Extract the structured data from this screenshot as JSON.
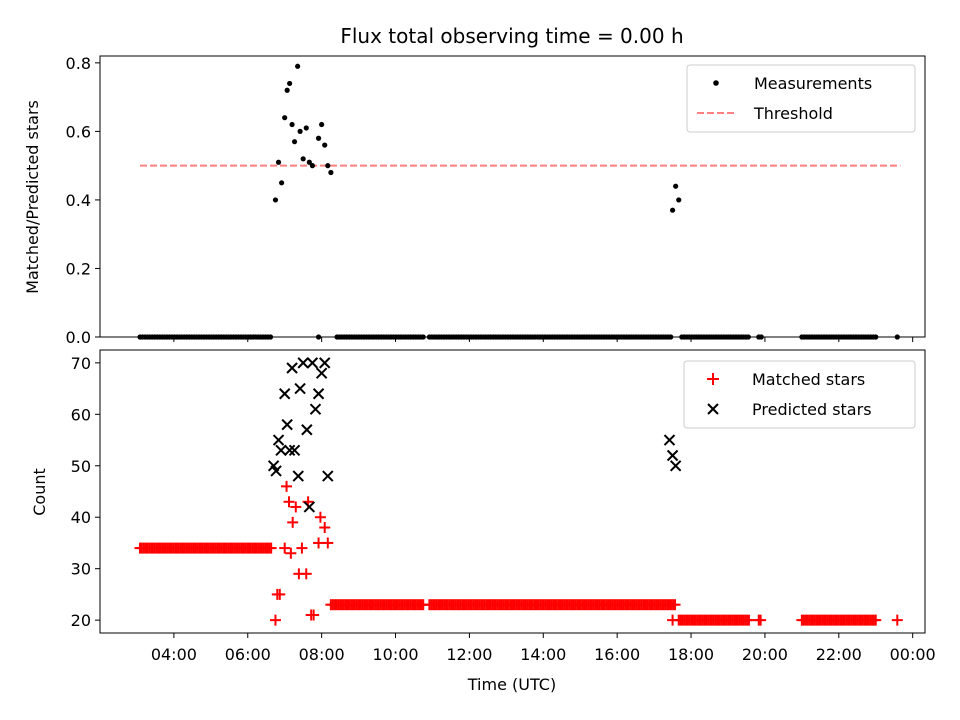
{
  "chart_data": [
    {
      "type": "scatter",
      "title": "Flux total observing time = 0.00 h",
      "xlabel": "",
      "ylabel": "Matched/Predicted stars",
      "ylim": [
        0,
        0.82
      ],
      "yticks": [
        0.0,
        0.2,
        0.4,
        0.6,
        0.8
      ],
      "ytick_labels": [
        "0.0",
        "0.2",
        "0.4",
        "0.6",
        "0.8"
      ],
      "xlim": [
        "02:00",
        "24:20"
      ],
      "legend_placement": "top-right",
      "colors": {
        "measurements": "#000000",
        "threshold": "#ff8080"
      },
      "series": [
        {
          "name": "Measurements",
          "marker": "dot",
          "points": [
            {
              "x": "06:45",
              "y": 0.4
            },
            {
              "x": "06:50",
              "y": 0.51
            },
            {
              "x": "06:55",
              "y": 0.45
            },
            {
              "x": "07:00",
              "y": 0.64
            },
            {
              "x": "07:04",
              "y": 0.72
            },
            {
              "x": "07:08",
              "y": 0.74
            },
            {
              "x": "07:12",
              "y": 0.62
            },
            {
              "x": "07:16",
              "y": 0.57
            },
            {
              "x": "07:21",
              "y": 0.79
            },
            {
              "x": "07:25",
              "y": 0.6
            },
            {
              "x": "07:30",
              "y": 0.52
            },
            {
              "x": "07:35",
              "y": 0.61
            },
            {
              "x": "07:40",
              "y": 0.51
            },
            {
              "x": "07:45",
              "y": 0.5
            },
            {
              "x": "07:55",
              "y": 0.58
            },
            {
              "x": "08:00",
              "y": 0.62
            },
            {
              "x": "08:05",
              "y": 0.56
            },
            {
              "x": "08:10",
              "y": 0.5
            },
            {
              "x": "08:15",
              "y": 0.48
            },
            {
              "x": "17:30",
              "y": 0.37
            },
            {
              "x": "17:35",
              "y": 0.44
            },
            {
              "x": "17:40",
              "y": 0.4
            }
          ],
          "zero_segments": [
            {
              "from": "03:05",
              "to": "06:40"
            },
            {
              "from": "07:55",
              "to": "07:58"
            },
            {
              "from": "08:25",
              "to": "10:45"
            },
            {
              "from": "10:55",
              "to": "17:30"
            },
            {
              "from": "17:45",
              "to": "19:35"
            },
            {
              "from": "19:50",
              "to": "19:55"
            },
            {
              "from": "21:00",
              "to": "23:00"
            },
            {
              "from": "23:35",
              "to": "23:38"
            }
          ]
        },
        {
          "name": "Threshold",
          "line": "dashed",
          "x": [
            "03:05",
            "23:40"
          ],
          "y": [
            0.5,
            0.5
          ]
        }
      ]
    },
    {
      "type": "scatter",
      "title": "",
      "xlabel": "Time (UTC)",
      "ylabel": "Count",
      "ylim": [
        17.5,
        72.5
      ],
      "yticks": [
        20,
        30,
        40,
        50,
        60,
        70
      ],
      "ytick_labels": [
        "20",
        "30",
        "40",
        "50",
        "60",
        "70"
      ],
      "xlim": [
        "02:00",
        "24:20"
      ],
      "xticks": [
        "04:00",
        "06:00",
        "08:00",
        "10:00",
        "12:00",
        "14:00",
        "16:00",
        "18:00",
        "20:00",
        "22:00",
        "24:00"
      ],
      "xtick_labels": [
        "04:00",
        "06:00",
        "08:00",
        "10:00",
        "12:00",
        "14:00",
        "16:00",
        "18:00",
        "20:00",
        "22:00",
        "00:00"
      ],
      "legend_placement": "top-right",
      "colors": {
        "matched": "#ff0000",
        "predicted": "#000000"
      },
      "series": [
        {
          "name": "Matched stars",
          "marker": "plus",
          "points": [
            {
              "x": "06:45",
              "y": 20
            },
            {
              "x": "06:48",
              "y": 25
            },
            {
              "x": "06:52",
              "y": 25
            },
            {
              "x": "07:00",
              "y": 34
            },
            {
              "x": "07:03",
              "y": 46
            },
            {
              "x": "07:07",
              "y": 43
            },
            {
              "x": "07:10",
              "y": 33
            },
            {
              "x": "07:13",
              "y": 39
            },
            {
              "x": "07:18",
              "y": 42
            },
            {
              "x": "07:23",
              "y": 29
            },
            {
              "x": "07:28",
              "y": 34
            },
            {
              "x": "07:35",
              "y": 29
            },
            {
              "x": "07:38",
              "y": 43
            },
            {
              "x": "07:43",
              "y": 21
            },
            {
              "x": "07:47",
              "y": 21
            },
            {
              "x": "07:55",
              "y": 35
            },
            {
              "x": "07:58",
              "y": 40
            },
            {
              "x": "08:05",
              "y": 38
            },
            {
              "x": "08:10",
              "y": 35
            },
            {
              "x": "17:30",
              "y": 20
            },
            {
              "x": "23:35",
              "y": 20
            }
          ],
          "segments": [
            {
              "from": "03:05",
              "to": "06:40",
              "y": 34
            },
            {
              "from": "08:15",
              "to": "10:45",
              "y": 23
            },
            {
              "from": "10:55",
              "to": "17:35",
              "y": 23
            },
            {
              "from": "17:40",
              "to": "19:35",
              "y": 20
            },
            {
              "from": "19:50",
              "to": "19:55",
              "y": 20
            },
            {
              "from": "21:00",
              "to": "23:00",
              "y": 20
            }
          ]
        },
        {
          "name": "Predicted stars",
          "marker": "x",
          "points": [
            {
              "x": "06:42",
              "y": 50
            },
            {
              "x": "06:46",
              "y": 49
            },
            {
              "x": "06:50",
              "y": 55
            },
            {
              "x": "06:54",
              "y": 53
            },
            {
              "x": "07:00",
              "y": 64
            },
            {
              "x": "07:04",
              "y": 58
            },
            {
              "x": "07:08",
              "y": 53
            },
            {
              "x": "07:12",
              "y": 69
            },
            {
              "x": "07:16",
              "y": 53
            },
            {
              "x": "07:22",
              "y": 48
            },
            {
              "x": "07:25",
              "y": 65
            },
            {
              "x": "07:30",
              "y": 70
            },
            {
              "x": "07:36",
              "y": 57
            },
            {
              "x": "07:40",
              "y": 42
            },
            {
              "x": "07:45",
              "y": 70
            },
            {
              "x": "07:50",
              "y": 61
            },
            {
              "x": "07:55",
              "y": 64
            },
            {
              "x": "08:00",
              "y": 68
            },
            {
              "x": "08:05",
              "y": 70
            },
            {
              "x": "08:10",
              "y": 48
            },
            {
              "x": "17:25",
              "y": 55
            },
            {
              "x": "17:30",
              "y": 52
            },
            {
              "x": "17:35",
              "y": 50
            }
          ]
        }
      ]
    }
  ]
}
